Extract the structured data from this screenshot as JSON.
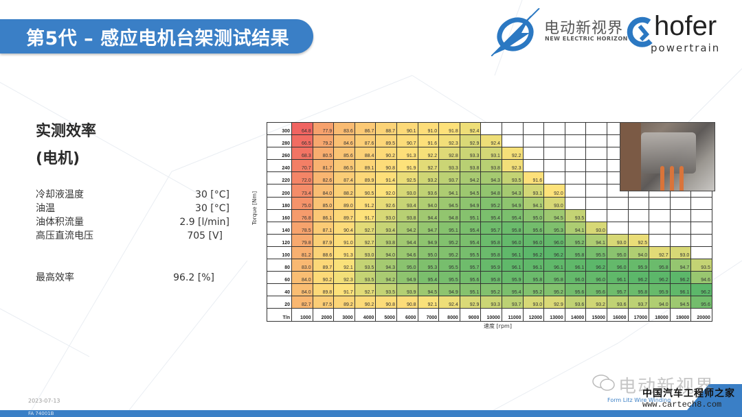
{
  "header": {
    "title": "第5代 – 感应电机台架测试结果",
    "logo_nei_cn": "电动新视界",
    "logo_nei_en": "NEW ELECTRIC HORIZON",
    "logo_hofer": "hofer",
    "logo_hofer_sub": "powertrain"
  },
  "left_panel": {
    "title_line1": "实测效率",
    "title_line2": "(电机)",
    "params": [
      {
        "label": "冷却液温度",
        "value": "30 [°C]"
      },
      {
        "label": "油温",
        "value": "30 [°C]"
      },
      {
        "label": "油体积流量",
        "value": "2.9 [l/min]"
      },
      {
        "label": "高压直流电压",
        "value": "705 [V]"
      }
    ],
    "max_eff": {
      "label": "最高效率",
      "value": "96.2 [%]"
    }
  },
  "footer": {
    "date": "2023-07-13",
    "code": "FA 74001B",
    "tag": "Form Litz Wire Winding",
    "watermark_cn": "电动新视界",
    "watermark_site_cn": "中国汽车工程师之家",
    "watermark_url": "www.cartech8.com"
  },
  "colors": {
    "brand_blue": "#3a7fc6",
    "low": "#f06060",
    "mid": "#fde27a",
    "high": "#5cb76a"
  },
  "chart_data": {
    "type": "heatmap",
    "title": "实测效率 (电机)",
    "xlabel": "速度 [rpm]",
    "ylabel": "Torque [Nm]",
    "corner_label": "T/n",
    "x": [
      1000,
      2000,
      3000,
      4000,
      5000,
      6000,
      7000,
      8000,
      9000,
      10000,
      11000,
      12000,
      13000,
      14000,
      15000,
      16000,
      17000,
      18000,
      19000,
      20000
    ],
    "y": [
      300,
      280,
      260,
      240,
      220,
      200,
      180,
      160,
      140,
      120,
      100,
      80,
      60,
      40,
      20
    ],
    "values": [
      [
        64.8,
        77.9,
        83.6,
        86.7,
        88.7,
        90.1,
        91.0,
        91.8,
        92.4,
        null,
        null,
        null,
        null,
        null,
        null,
        null,
        null,
        null,
        null,
        null
      ],
      [
        66.5,
        79.2,
        84.6,
        87.6,
        89.5,
        90.7,
        91.6,
        92.3,
        92.9,
        92.4,
        null,
        null,
        null,
        null,
        null,
        null,
        null,
        null,
        null,
        null
      ],
      [
        68.3,
        80.5,
        85.6,
        88.4,
        90.2,
        91.3,
        92.2,
        92.8,
        93.3,
        93.1,
        92.2,
        null,
        null,
        null,
        null,
        null,
        null,
        null,
        null,
        null
      ],
      [
        70.7,
        81.7,
        86.5,
        89.1,
        90.8,
        91.9,
        92.7,
        93.3,
        93.8,
        93.8,
        92.3,
        null,
        null,
        null,
        null,
        null,
        null,
        null,
        null,
        null
      ],
      [
        72.0,
        82.6,
        87.4,
        89.9,
        91.4,
        92.5,
        93.2,
        93.7,
        94.2,
        94.3,
        93.5,
        91.6,
        null,
        null,
        null,
        null,
        null,
        null,
        null,
        null
      ],
      [
        73.4,
        84.0,
        88.2,
        90.5,
        92.0,
        93.0,
        93.6,
        94.1,
        94.5,
        94.8,
        94.3,
        93.1,
        92.0,
        null,
        null,
        null,
        null,
        null,
        null,
        null
      ],
      [
        75.0,
        85.0,
        89.0,
        91.2,
        92.6,
        93.4,
        94.0,
        94.5,
        94.9,
        95.2,
        94.9,
        94.1,
        93.0,
        null,
        null,
        null,
        null,
        null,
        null,
        null
      ],
      [
        76.8,
        86.1,
        89.7,
        91.7,
        93.0,
        93.8,
        94.4,
        94.8,
        95.1,
        95.4,
        95.4,
        95.0,
        94.5,
        93.5,
        null,
        null,
        null,
        null,
        null,
        null
      ],
      [
        78.5,
        87.1,
        90.4,
        92.7,
        93.4,
        94.2,
        94.7,
        95.1,
        95.4,
        95.7,
        95.8,
        95.6,
        95.3,
        94.1,
        93.0,
        null,
        null,
        null,
        null,
        null
      ],
      [
        79.8,
        87.9,
        91.0,
        92.7,
        93.8,
        94.4,
        94.9,
        95.2,
        95.4,
        95.8,
        96.0,
        96.0,
        96.0,
        95.2,
        94.1,
        93.0,
        92.5,
        null,
        null,
        null
      ],
      [
        81.2,
        88.6,
        91.3,
        93.0,
        94.0,
        94.6,
        95.0,
        95.2,
        95.5,
        95.8,
        96.1,
        96.2,
        96.2,
        95.8,
        95.5,
        95.0,
        94.0,
        92.7,
        93.0,
        null
      ],
      [
        83.0,
        89.7,
        92.1,
        93.5,
        94.3,
        95.0,
        95.3,
        95.5,
        95.7,
        95.9,
        96.1,
        96.1,
        96.1,
        96.1,
        96.2,
        96.0,
        95.9,
        95.8,
        94.7,
        93.5
      ],
      [
        84.0,
        90.2,
        92.3,
        93.5,
        94.2,
        94.9,
        95.4,
        95.5,
        95.6,
        95.8,
        95.9,
        95.8,
        95.8,
        96.0,
        96.0,
        96.1,
        96.2,
        96.2,
        96.2,
        94.6
      ],
      [
        84.0,
        89.8,
        91.7,
        92.7,
        93.5,
        93.9,
        94.5,
        94.9,
        95.1,
        95.2,
        95.4,
        95.2,
        95.2,
        95.6,
        95.6,
        95.7,
        95.8,
        95.9,
        96.1,
        96.2
      ],
      [
        82.7,
        87.5,
        89.2,
        90.2,
        90.8,
        90.8,
        92.1,
        92.4,
        92.9,
        93.3,
        93.7,
        93.0,
        92.9,
        93.6,
        93.2,
        93.6,
        93.7,
        94.0,
        94.5,
        95.6
      ]
    ],
    "color_scale": {
      "min_color": "#f06060",
      "mid_color": "#fde27a",
      "max_color": "#5cb76a"
    },
    "max_value": 96.2,
    "unit": "%"
  }
}
